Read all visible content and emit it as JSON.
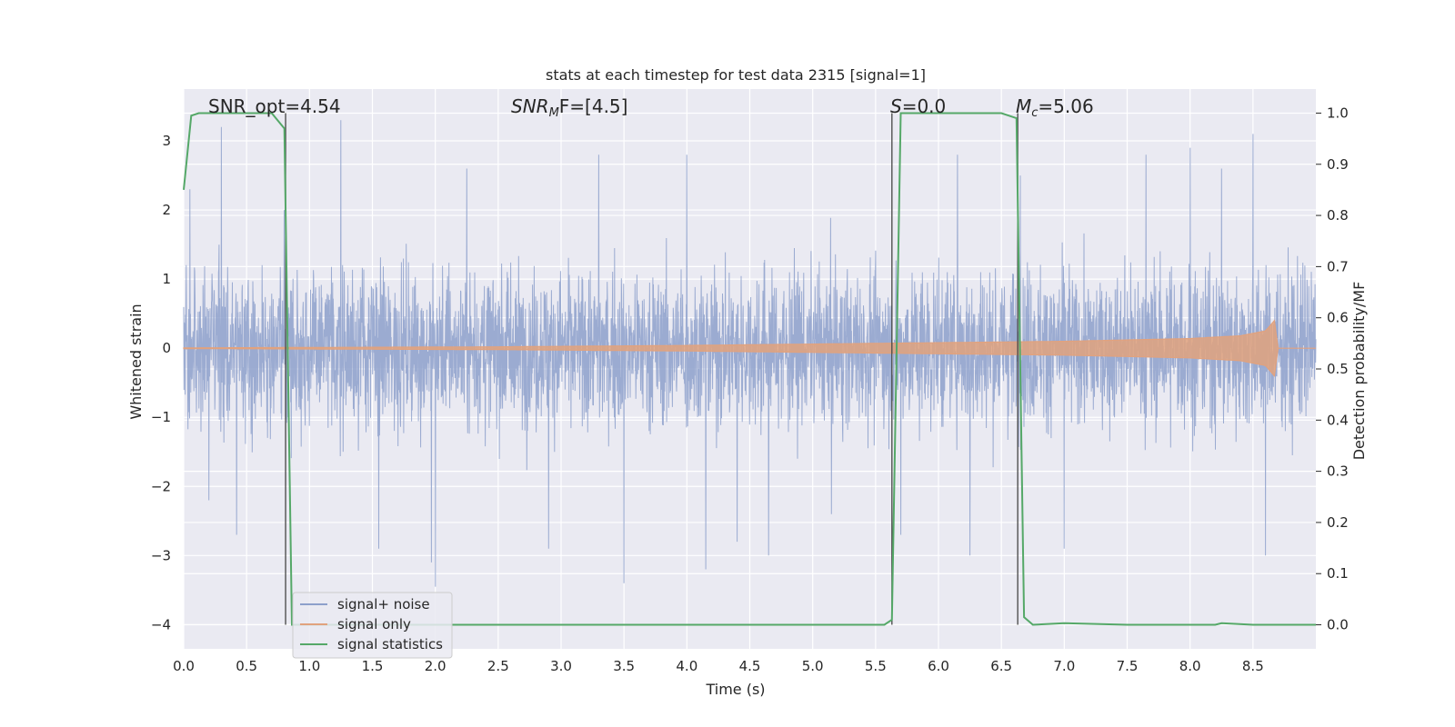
{
  "chart_data": {
    "type": "line",
    "title": "stats at each timestep for test data 2315 [signal=1]",
    "xlabel": "Time (s)",
    "ylabel": "Whitened strain",
    "y2label": "Detection probability/MF",
    "xlim": [
      0,
      9.0
    ],
    "ylim": [
      -4.35,
      3.75
    ],
    "y2lim": [
      -0.047,
      1.047
    ],
    "xticks": [
      0.0,
      0.5,
      1.0,
      1.5,
      2.0,
      2.5,
      3.0,
      3.5,
      4.0,
      4.5,
      5.0,
      5.5,
      6.0,
      6.5,
      7.0,
      7.5,
      8.0,
      8.5
    ],
    "xtick_labels": [
      "0.0",
      "0.5",
      "1.0",
      "1.5",
      "2.0",
      "2.5",
      "3.0",
      "3.5",
      "4.0",
      "4.5",
      "5.0",
      "5.5",
      "6.0",
      "6.5",
      "7.0",
      "7.5",
      "8.0",
      "8.5"
    ],
    "yticks": [
      -4,
      -3,
      -2,
      -1,
      0,
      1,
      2,
      3
    ],
    "ytick_labels": [
      "−4",
      "−3",
      "−2",
      "−1",
      "0",
      "1",
      "2",
      "3"
    ],
    "y2ticks": [
      0.0,
      0.1,
      0.2,
      0.3,
      0.4,
      0.5,
      0.6,
      0.7,
      0.8,
      0.9,
      1.0
    ],
    "y2tick_labels": [
      "0.0",
      "0.1",
      "0.2",
      "0.3",
      "0.4",
      "0.5",
      "0.6",
      "0.7",
      "0.8",
      "0.9",
      "1.0"
    ],
    "grid": true,
    "legend": {
      "position": "lower-left",
      "entries": [
        {
          "label": "signal+ noise",
          "color": "#8da0cb"
        },
        {
          "label": "signal only",
          "color": "#e1a27e"
        },
        {
          "label": "signal statistics",
          "color": "#55a868"
        }
      ]
    },
    "annotations": {
      "snr_opt": "SNR_opt=4.54",
      "snr_mf_italic": "SNR",
      "snr_mf_sub": "M",
      "snr_mf_rest": "F=[4.5]",
      "s_italic": "S",
      "s_rest": "=0.0",
      "mc_italic": "M",
      "mc_sub": "c",
      "mc_rest": "=5.06"
    },
    "vertical_lines_x": [
      0.81,
      5.63,
      6.63
    ],
    "series": [
      {
        "name": "signal+ noise",
        "axis": "left",
        "color": "#8da0cb",
        "description_range": [
          -3.4,
          3.3
        ],
        "peaks": [
          [
            0.05,
            2.3
          ],
          [
            0.2,
            -2.2
          ],
          [
            0.3,
            3.2
          ],
          [
            0.42,
            -2.7
          ],
          [
            0.8,
            2.0
          ],
          [
            1.25,
            3.3
          ],
          [
            1.55,
            -2.9
          ],
          [
            1.97,
            -3.1
          ],
          [
            2.0,
            -3.45
          ],
          [
            2.25,
            2.6
          ],
          [
            2.9,
            -2.9
          ],
          [
            3.3,
            2.8
          ],
          [
            3.5,
            -3.4
          ],
          [
            4.0,
            2.8
          ],
          [
            4.15,
            -3.2
          ],
          [
            4.4,
            -2.8
          ],
          [
            4.65,
            -3.0
          ],
          [
            5.15,
            -2.4
          ],
          [
            5.7,
            -2.7
          ],
          [
            6.15,
            2.8
          ],
          [
            6.25,
            -3.0
          ],
          [
            6.65,
            2.5
          ],
          [
            7.0,
            -2.9
          ],
          [
            7.65,
            2.8
          ],
          [
            8.0,
            2.9
          ],
          [
            8.25,
            2.6
          ],
          [
            8.5,
            3.1
          ],
          [
            8.6,
            -3.0
          ]
        ]
      },
      {
        "name": "signal only",
        "axis": "left",
        "color": "#e1a27e",
        "x": [
          0.0,
          2.5,
          4.0,
          5.0,
          6.0,
          7.0,
          8.0,
          8.4,
          8.6,
          8.67,
          8.7,
          9.0
        ],
        "amplitude": [
          0.005,
          0.02,
          0.04,
          0.06,
          0.08,
          0.1,
          0.14,
          0.18,
          0.25,
          0.4,
          0.0,
          0.0
        ]
      },
      {
        "name": "signal statistics",
        "axis": "right",
        "color": "#55a868",
        "x": [
          0.0,
          0.06,
          0.12,
          0.3,
          0.5,
          0.7,
          0.8,
          0.86,
          0.9,
          1.0,
          2.0,
          3.0,
          4.0,
          5.0,
          5.5,
          5.57,
          5.63,
          5.7,
          5.8,
          6.0,
          6.5,
          6.62,
          6.68,
          6.75,
          7.0,
          7.5,
          8.0,
          8.2,
          8.25,
          8.5,
          9.0
        ],
        "values": [
          0.85,
          0.995,
          1.0,
          1.0,
          1.0,
          1.0,
          0.97,
          0.0,
          0.0,
          0.0,
          0.0,
          0.0,
          0.0,
          0.0,
          0.0,
          0.0,
          0.01,
          1.0,
          1.0,
          1.0,
          1.0,
          0.99,
          0.015,
          0.0,
          0.003,
          0.0,
          0.0,
          0.0,
          0.003,
          0.0,
          0.0
        ]
      }
    ]
  }
}
